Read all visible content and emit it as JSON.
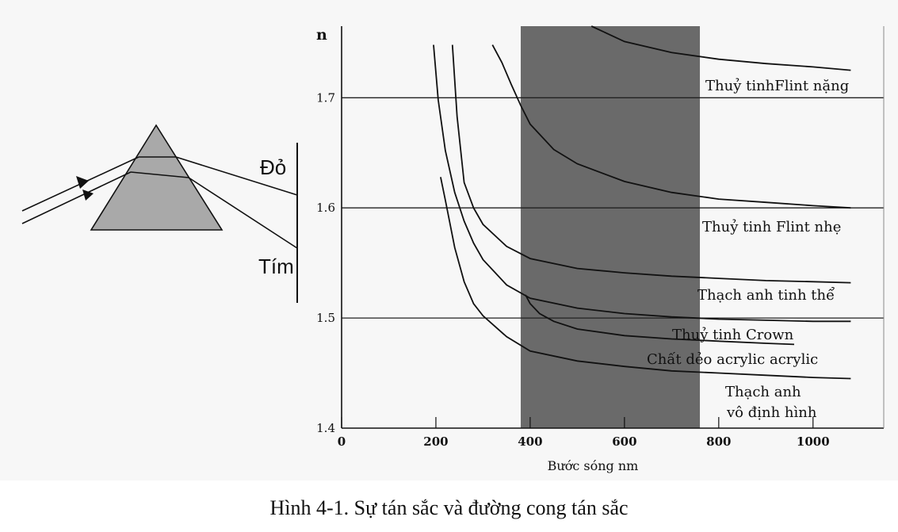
{
  "caption": "Hình 4-1. Sự tán sắc và đường cong tán sắc",
  "prism": {
    "label_red": "Đỏ",
    "label_violet": "Tím"
  },
  "colors": {
    "background": "#f7f7f7",
    "visible_band": "#6a6a6a",
    "ink": "#111111"
  },
  "chart_data": {
    "type": "line",
    "title": "",
    "xlabel": "Bước sóng nm",
    "ylabel": "n",
    "xlim": [
      0,
      1150
    ],
    "ylim": [
      1.4,
      1.765
    ],
    "x_ticks": [
      0,
      200,
      400,
      600,
      800,
      1000
    ],
    "x_tick_labels": [
      "0",
      "200",
      "400",
      "600",
      "800",
      "1000"
    ],
    "y_ticks": [
      1.4,
      1.5,
      1.6,
      1.7
    ],
    "y_tick_labels": [
      "1.4",
      "1.5",
      "1.6",
      "1.7"
    ],
    "hgrid": [
      1.5,
      1.6,
      1.7
    ],
    "shaded_band": [
      380,
      760
    ],
    "series": [
      {
        "name": "Thuỷ tinhFlint nặng",
        "x": [
          530,
          600,
          700,
          800,
          900,
          1000,
          1080
        ],
        "y": [
          1.765,
          1.751,
          1.741,
          1.735,
          1.731,
          1.728,
          1.725
        ]
      },
      {
        "name": "Thuỷ tinh Flint nhẹ",
        "x": [
          320,
          340,
          360,
          380,
          400,
          450,
          500,
          600,
          700,
          800,
          900,
          1000,
          1080
        ],
        "y": [
          1.748,
          1.732,
          1.712,
          1.693,
          1.676,
          1.653,
          1.64,
          1.624,
          1.614,
          1.608,
          1.605,
          1.602,
          1.6
        ]
      },
      {
        "name": "Thạch anh tinh thể",
        "x": [
          235,
          245,
          260,
          280,
          300,
          350,
          400,
          500,
          600,
          700,
          800,
          900,
          1000,
          1080
        ],
        "y": [
          1.748,
          1.683,
          1.623,
          1.6,
          1.585,
          1.565,
          1.554,
          1.545,
          1.541,
          1.538,
          1.536,
          1.534,
          1.533,
          1.532
        ]
      },
      {
        "name": "Thuỷ tinh Crown",
        "x": [
          195,
          205,
          220,
          240,
          260,
          280,
          300,
          350,
          400,
          500,
          600,
          700,
          800,
          900,
          1000,
          1080
        ],
        "y": [
          1.748,
          1.698,
          1.652,
          1.614,
          1.588,
          1.568,
          1.553,
          1.53,
          1.518,
          1.509,
          1.504,
          1.501,
          1.499,
          1.498,
          1.497,
          1.497
        ]
      },
      {
        "name": "Chất dẻo acrylic acrylic",
        "x": [
          390,
          400,
          420,
          450,
          500,
          600,
          700,
          800,
          900,
          960
        ],
        "y": [
          1.521,
          1.513,
          1.504,
          1.497,
          1.49,
          1.484,
          1.481,
          1.479,
          1.477,
          1.476
        ]
      },
      {
        "name": "Thạch anh vô định hình",
        "x": [
          210,
          220,
          240,
          260,
          280,
          300,
          350,
          400,
          500,
          600,
          700,
          800,
          900,
          1000,
          1080
        ],
        "y": [
          1.628,
          1.607,
          1.564,
          1.533,
          1.513,
          1.502,
          1.483,
          1.47,
          1.461,
          1.456,
          1.452,
          1.45,
          1.448,
          1.446,
          1.445
        ]
      }
    ],
    "curve_labels": [
      {
        "text": "Thuỷ tinhFlint nặng",
        "for": "Thuỷ tinhFlint nặng"
      },
      {
        "text": "Thuỷ tinh Flint nhẹ",
        "for": "Thuỷ tinh Flint nhẹ"
      },
      {
        "text": "Thạch anh tinh thể",
        "for": "Thạch anh tinh thể"
      },
      {
        "text": "Thuỷ tinh Crown",
        "for": "Thuỷ tinh Crown"
      },
      {
        "text": "Chất dẻo acrylic acrylic",
        "for": "Chất dẻo acrylic acrylic"
      },
      {
        "text": "Thạch anh",
        "for": "Thạch anh vô định hình"
      },
      {
        "text": "vô định hình",
        "for": "Thạch anh vô định hình"
      }
    ]
  }
}
